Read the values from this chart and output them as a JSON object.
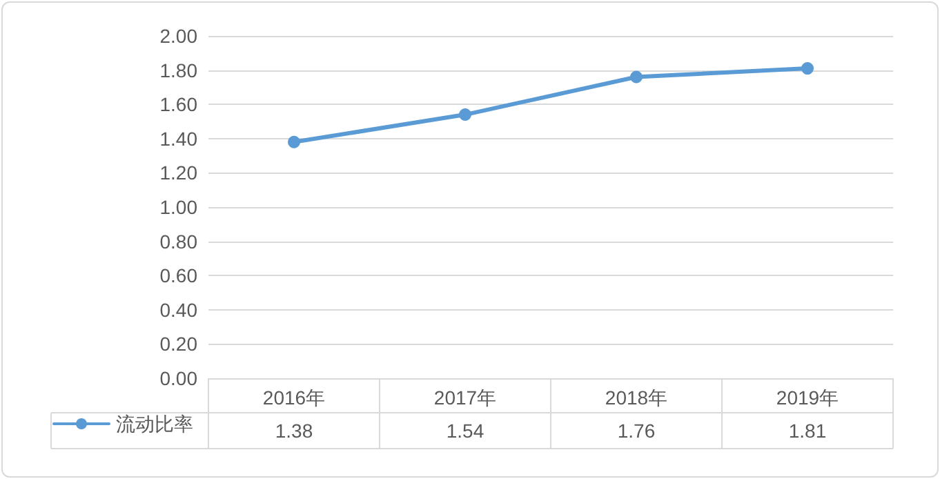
{
  "chart_data": {
    "type": "line",
    "categories": [
      "2016年",
      "2017年",
      "2018年",
      "2019年"
    ],
    "series": [
      {
        "name": "流动比率",
        "color": "#5b9bd5",
        "values": [
          1.38,
          1.54,
          1.76,
          1.81
        ]
      }
    ],
    "ylim": [
      0,
      2
    ],
    "yticks": [
      "0.00",
      "0.20",
      "0.40",
      "0.60",
      "0.80",
      "1.00",
      "1.20",
      "1.40",
      "1.60",
      "1.80",
      "2.00"
    ],
    "grid": "y",
    "legend": "bottom left",
    "marker": "circle",
    "line_style": "solid",
    "data_labels": true
  }
}
